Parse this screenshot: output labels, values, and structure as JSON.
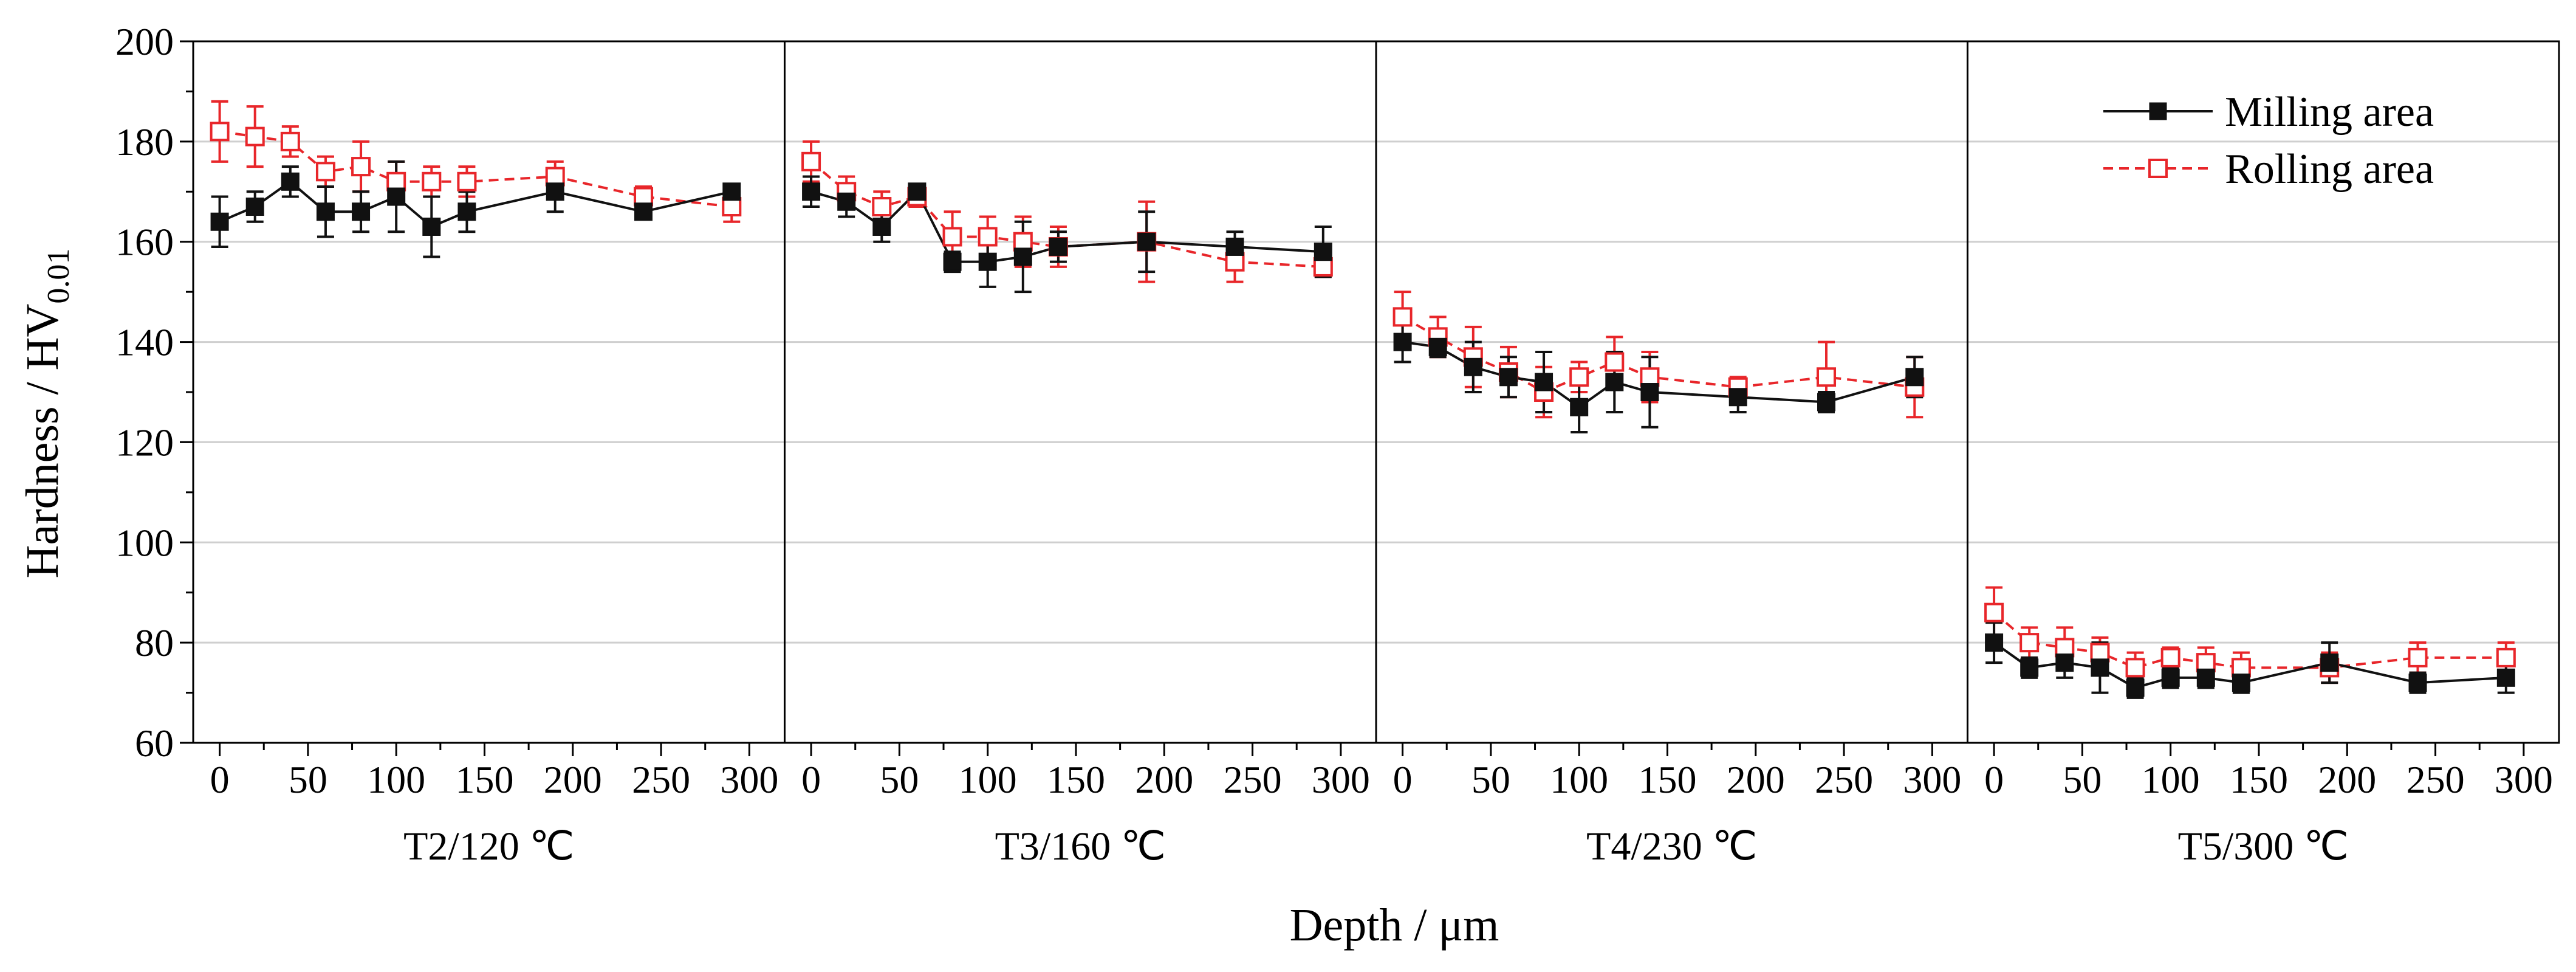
{
  "chart_data": {
    "type": "line",
    "ylabel": "Hardness / HV",
    "ylabel_subscript": "0.01",
    "xlabel": "Depth / μm",
    "ylim": [
      60,
      200
    ],
    "yticks": [
      60,
      80,
      100,
      120,
      140,
      160,
      180,
      200
    ],
    "xlim": [
      -15,
      320
    ],
    "xticks": [
      0,
      50,
      100,
      150,
      200,
      250,
      300
    ],
    "grid": true,
    "legend_position": "top-right",
    "colors": {
      "milling": "#111111",
      "rolling": "#e8262a",
      "grid": "#cfcfcf"
    },
    "panels": [
      {
        "label": "T2/120 ℃",
        "series": [
          {
            "name": "Milling area",
            "x": [
              0,
              20,
              40,
              60,
              80,
              100,
              120,
              140,
              190,
              240,
              290
            ],
            "y": [
              164,
              167,
              172,
              166,
              166,
              169,
              163,
              166,
              170,
              166,
              170
            ],
            "err": [
              5,
              3,
              3,
              5,
              4,
              7,
              6,
              4,
              4,
              1,
              1
            ]
          },
          {
            "name": "Rolling area",
            "x": [
              0,
              20,
              40,
              60,
              80,
              100,
              120,
              140,
              190,
              240,
              290
            ],
            "y": [
              182,
              181,
              180,
              174,
              175,
              172,
              172,
              172,
              173,
              169,
              167
            ],
            "err": [
              6,
              6,
              3,
              3,
              5,
              4,
              3,
              3,
              3,
              2,
              3
            ]
          }
        ]
      },
      {
        "label": "T3/160 ℃",
        "series": [
          {
            "name": "Milling area",
            "x": [
              0,
              20,
              40,
              60,
              80,
              100,
              120,
              140,
              190,
              240,
              290
            ],
            "y": [
              170,
              168,
              163,
              170,
              156,
              156,
              157,
              159,
              160,
              159,
              158
            ],
            "err": [
              3,
              3,
              3,
              1,
              2,
              5,
              7,
              3,
              6,
              3,
              5
            ]
          },
          {
            "name": "Rolling area",
            "x": [
              0,
              20,
              40,
              60,
              80,
              100,
              120,
              140,
              190,
              240,
              290
            ],
            "y": [
              176,
              170,
              167,
              169,
              161,
              161,
              160,
              159,
              160,
              156,
              155
            ],
            "err": [
              4,
              3,
              3,
              2,
              5,
              4,
              5,
              4,
              8,
              4,
              2
            ]
          }
        ]
      },
      {
        "label": "T4/230 ℃",
        "series": [
          {
            "name": "Milling area",
            "x": [
              0,
              20,
              40,
              60,
              80,
              100,
              120,
              140,
              190,
              240,
              290
            ],
            "y": [
              140,
              139,
              135,
              133,
              132,
              127,
              132,
              130,
              129,
              128,
              133
            ],
            "err": [
              4,
              2,
              5,
              4,
              6,
              5,
              6,
              7,
              3,
              2,
              4
            ]
          },
          {
            "name": "Rolling area",
            "x": [
              0,
              20,
              40,
              60,
              80,
              100,
              120,
              140,
              190,
              240,
              290
            ],
            "y": [
              145,
              141,
              137,
              134,
              130,
              133,
              136,
              133,
              131,
              133,
              131
            ],
            "err": [
              5,
              4,
              6,
              5,
              5,
              3,
              5,
              5,
              2,
              7,
              6
            ]
          }
        ]
      },
      {
        "label": "T5/300 ℃",
        "series": [
          {
            "name": "Milling area",
            "x": [
              0,
              20,
              40,
              60,
              80,
              100,
              120,
              140,
              190,
              240,
              290
            ],
            "y": [
              80,
              75,
              76,
              75,
              71,
              73,
              73,
              72,
              76,
              72,
              73
            ],
            "err": [
              4,
              2,
              3,
              5,
              2,
              2,
              2,
              2,
              4,
              2,
              3
            ]
          },
          {
            "name": "Rolling area",
            "x": [
              0,
              20,
              40,
              60,
              80,
              100,
              120,
              140,
              190,
              240,
              290
            ],
            "y": [
              86,
              80,
              79,
              78,
              75,
              77,
              76,
              75,
              75,
              77,
              77
            ],
            "err": [
              5,
              3,
              4,
              3,
              3,
              2,
              3,
              3,
              3,
              3,
              3
            ]
          }
        ]
      }
    ]
  }
}
